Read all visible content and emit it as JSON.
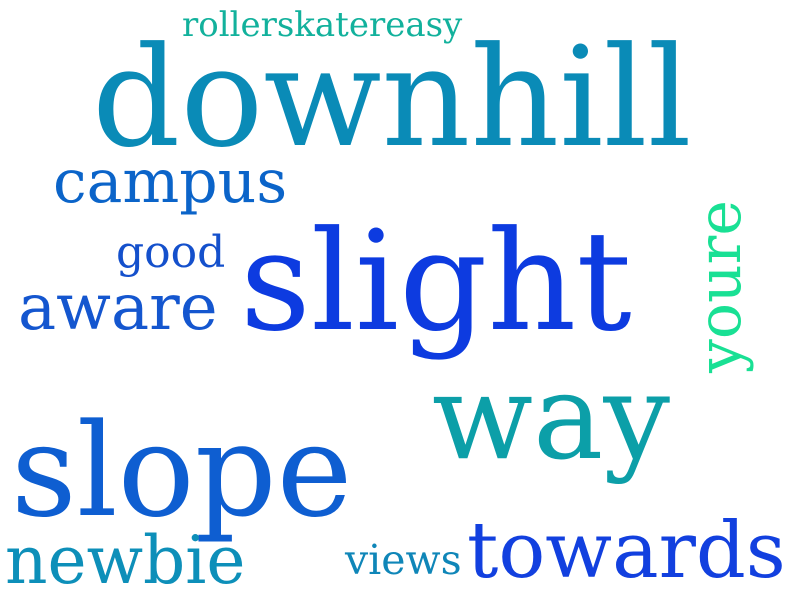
{
  "word_cloud": {
    "words": [
      {
        "key": "rollerskatereasy",
        "text": "rollerskatereasy",
        "color": "#12b19c",
        "orientation": "horizontal"
      },
      {
        "key": "downhill",
        "text": "downhill",
        "color": "#0a8bb7",
        "orientation": "horizontal"
      },
      {
        "key": "campus",
        "text": "campus",
        "color": "#0b64c9",
        "orientation": "horizontal"
      },
      {
        "key": "good",
        "text": "good",
        "color": "#1450cc",
        "orientation": "horizontal"
      },
      {
        "key": "aware",
        "text": "aware",
        "color": "#1456cf",
        "orientation": "horizontal"
      },
      {
        "key": "slight",
        "text": "slight",
        "color": "#0d3be0",
        "orientation": "horizontal"
      },
      {
        "key": "youre",
        "text": "youre",
        "color": "#19e094",
        "orientation": "vertical"
      },
      {
        "key": "way",
        "text": "way",
        "color": "#0c9fa8",
        "orientation": "horizontal"
      },
      {
        "key": "slope",
        "text": "slope",
        "color": "#0e5ed1",
        "orientation": "horizontal"
      },
      {
        "key": "newbie",
        "text": "newbie",
        "color": "#0d8fb9",
        "orientation": "horizontal"
      },
      {
        "key": "views",
        "text": "views",
        "color": "#0f86b8",
        "orientation": "horizontal"
      },
      {
        "key": "towards",
        "text": "towards",
        "color": "#1240df",
        "orientation": "horizontal"
      }
    ]
  }
}
